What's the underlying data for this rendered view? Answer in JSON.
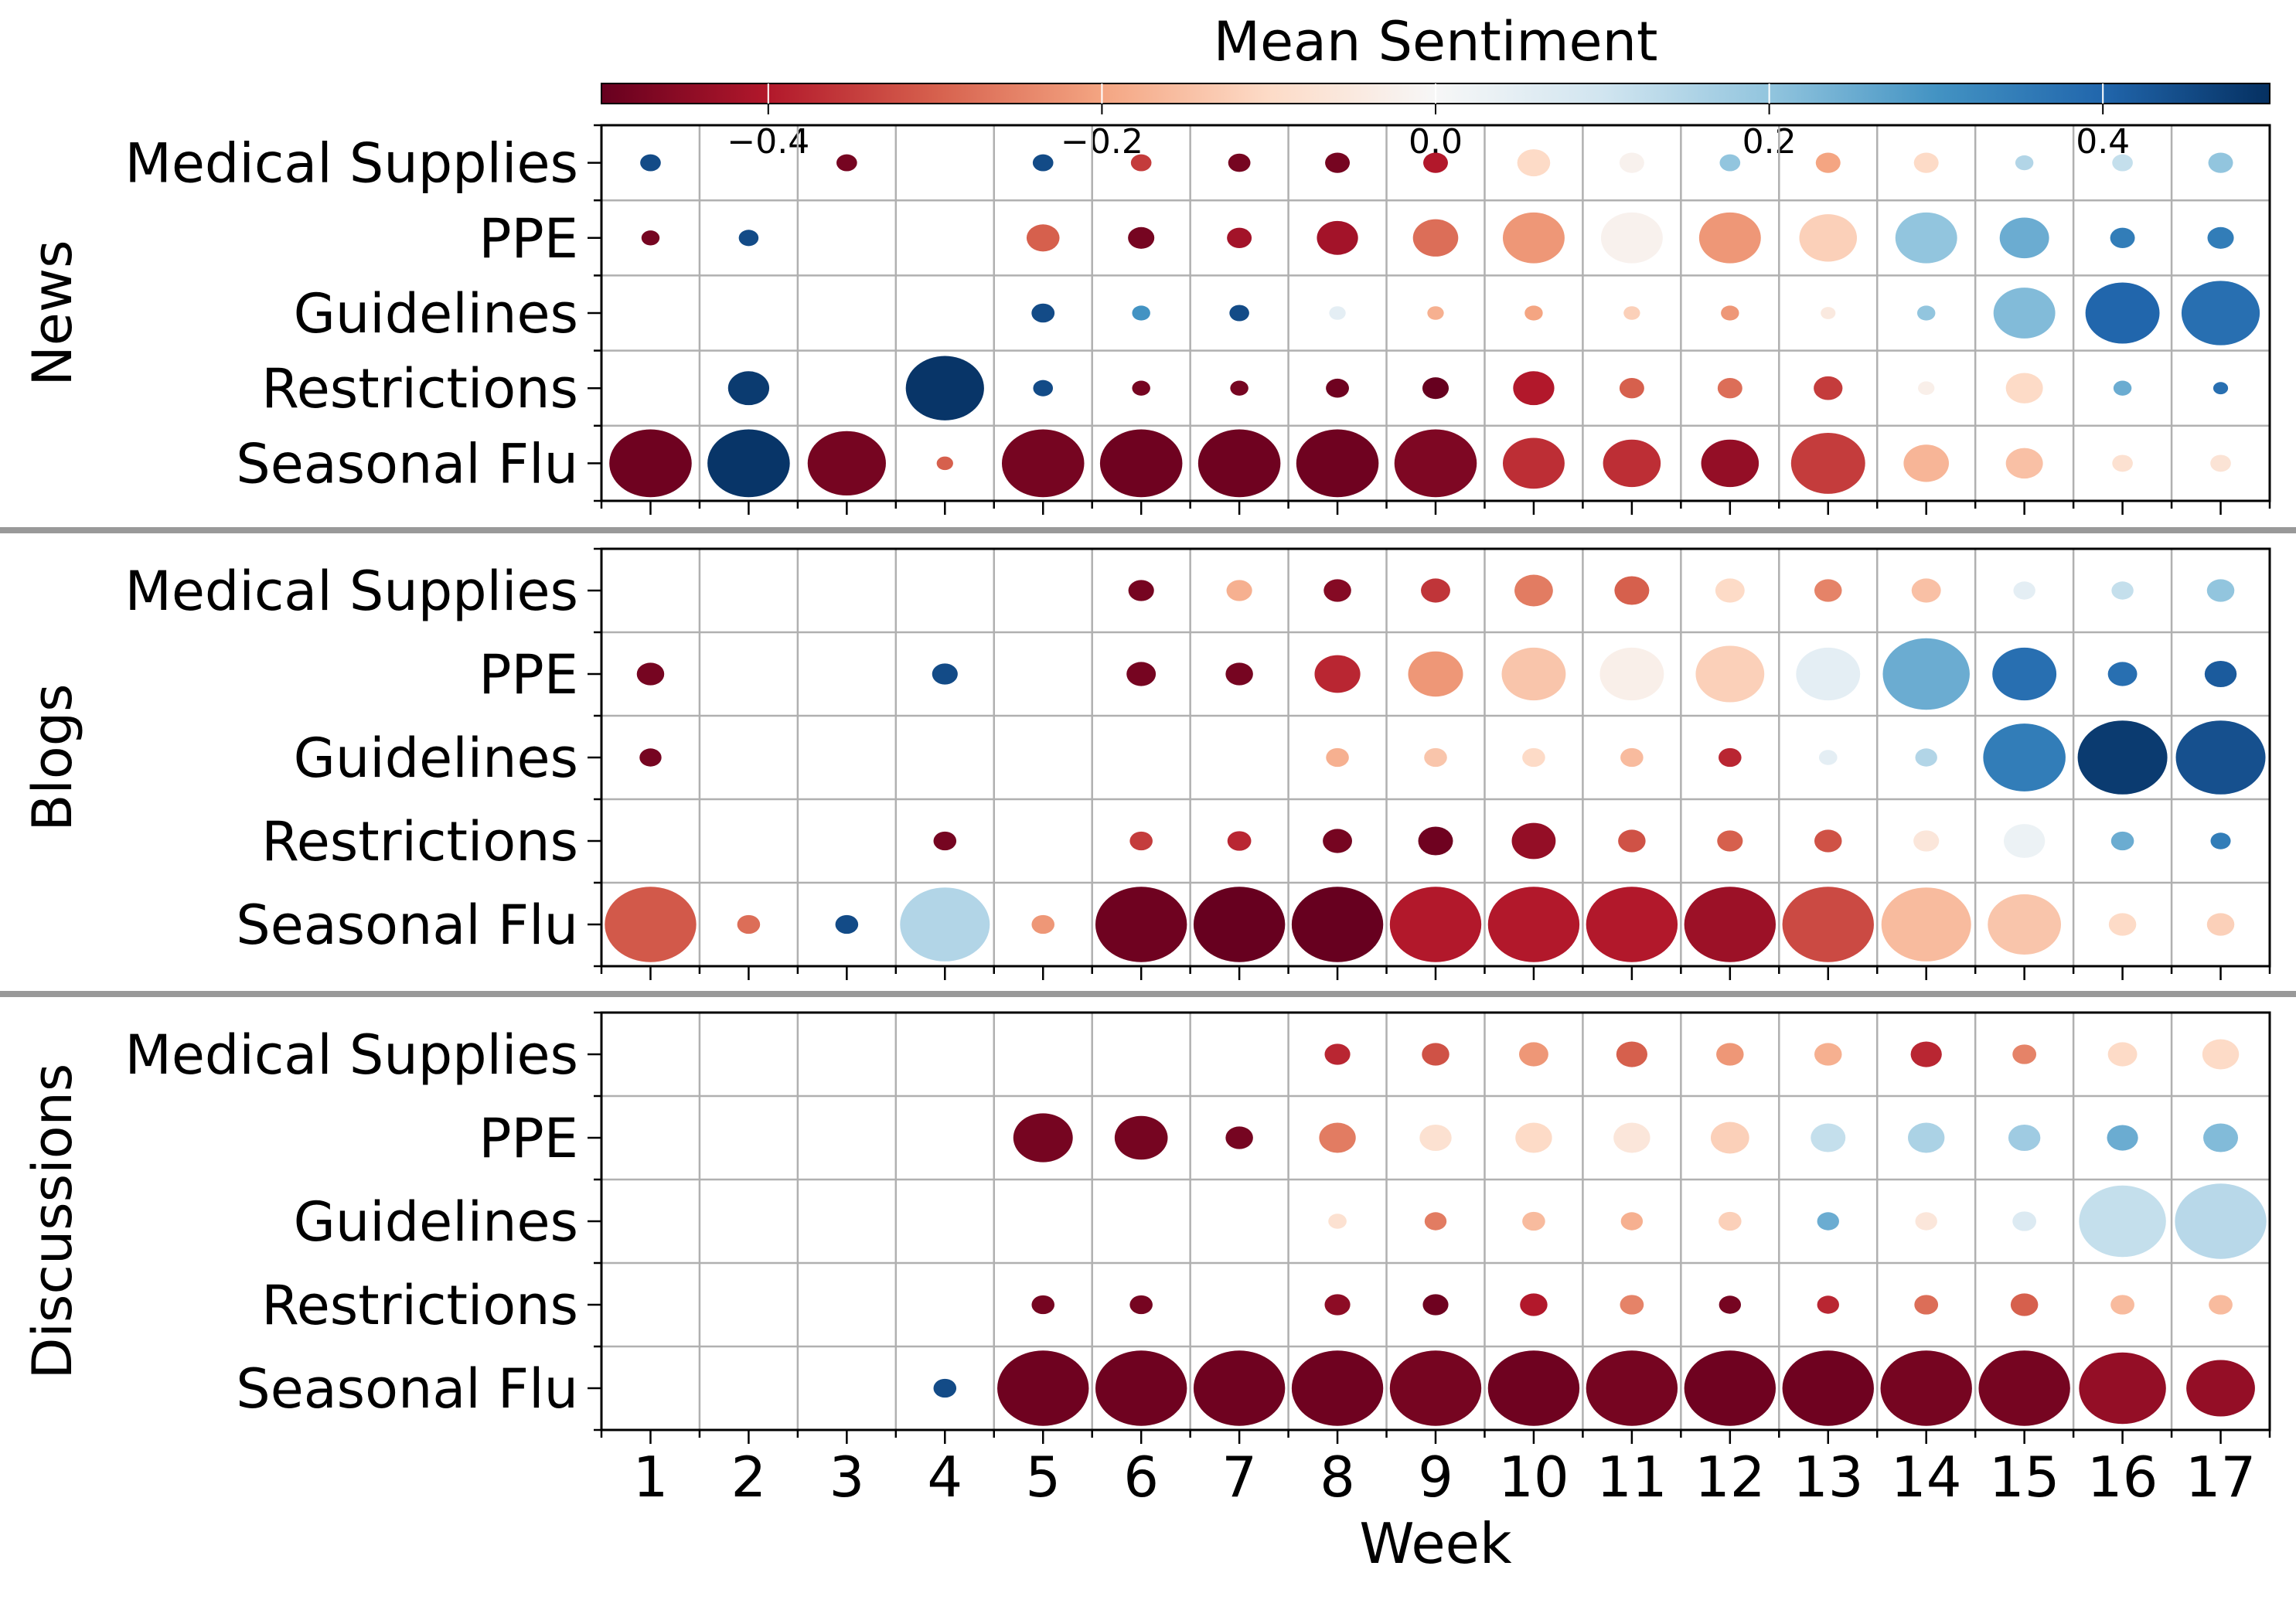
{
  "chart_data": {
    "type": "bubble-heatmap",
    "colorbar": {
      "title": "Mean Sentiment",
      "min": -0.5,
      "max": 0.5,
      "ticks": [
        -0.4,
        -0.2,
        0.0,
        0.2,
        0.4
      ],
      "tick_labels": [
        "−0.4",
        "−0.2",
        "0.0",
        "0.2",
        "0.4"
      ],
      "colormap": "RdBu"
    },
    "xlabel": "Week",
    "weeks": [
      1,
      2,
      3,
      4,
      5,
      6,
      7,
      8,
      9,
      10,
      11,
      12,
      13,
      14,
      15,
      16,
      17
    ],
    "categories": [
      "Medical Supplies",
      "PPE",
      "Guidelines",
      "Restrictions",
      "Seasonal Flu"
    ],
    "panels": [
      {
        "name": "News",
        "rows": [
          {
            "category": "Medical Supplies",
            "sentiment": [
              0.45,
              null,
              -0.48,
              null,
              0.45,
              -0.35,
              -0.48,
              -0.48,
              -0.4,
              -0.1,
              -0.02,
              0.2,
              -0.2,
              -0.1,
              0.15,
              0.12,
              0.2
            ],
            "size": [
              0.25,
              null,
              0.25,
              null,
              0.25,
              0.25,
              0.27,
              0.3,
              0.3,
              0.4,
              0.3,
              0.25,
              0.3,
              0.3,
              0.22,
              0.25,
              0.3
            ]
          },
          {
            "category": "PPE",
            "sentiment": [
              -0.48,
              0.45,
              null,
              null,
              -0.3,
              -0.48,
              -0.42,
              -0.42,
              -0.28,
              -0.22,
              -0.02,
              -0.22,
              -0.12,
              0.2,
              0.25,
              0.35,
              0.35
            ],
            "size": [
              0.22,
              0.24,
              null,
              null,
              0.4,
              0.32,
              0.3,
              0.5,
              0.55,
              0.75,
              0.75,
              0.75,
              0.7,
              0.75,
              0.6,
              0.3,
              0.32
            ]
          },
          {
            "category": "Guidelines",
            "sentiment": [
              null,
              null,
              null,
              null,
              0.45,
              0.3,
              0.45,
              0.05,
              -0.18,
              -0.2,
              -0.12,
              -0.22,
              -0.05,
              0.2,
              0.22,
              0.4,
              0.38
            ],
            "size": [
              null,
              null,
              null,
              null,
              0.28,
              0.22,
              0.24,
              0.2,
              0.2,
              0.22,
              0.2,
              0.22,
              0.18,
              0.22,
              0.75,
              0.9,
              0.95
            ]
          },
          {
            "category": "Restrictions",
            "sentiment": [
              null,
              0.48,
              null,
              0.49,
              0.45,
              -0.48,
              -0.48,
              -0.49,
              -0.5,
              -0.4,
              -0.3,
              -0.28,
              -0.35,
              -0.03,
              -0.1,
              0.25,
              0.38
            ],
            "size": [
              null,
              0.5,
              null,
              0.95,
              0.24,
              0.22,
              0.22,
              0.28,
              0.32,
              0.5,
              0.3,
              0.3,
              0.35,
              0.2,
              0.45,
              0.22,
              0.18
            ]
          },
          {
            "category": "Seasonal Flu",
            "sentiment": [
              -0.49,
              0.49,
              -0.48,
              -0.3,
              -0.48,
              -0.49,
              -0.49,
              -0.49,
              -0.47,
              -0.37,
              -0.37,
              -0.44,
              -0.35,
              -0.17,
              -0.15,
              -0.08,
              -0.07
            ],
            "size": [
              1.0,
              1.0,
              0.95,
              0.2,
              1.0,
              1.0,
              1.0,
              1.0,
              1.0,
              0.75,
              0.7,
              0.7,
              0.9,
              0.55,
              0.45,
              0.25,
              0.25
            ]
          }
        ]
      },
      {
        "name": "Blogs",
        "rows": [
          {
            "category": "Medical Supplies",
            "sentiment": [
              null,
              null,
              null,
              null,
              null,
              -0.48,
              -0.18,
              -0.46,
              -0.36,
              -0.26,
              -0.3,
              -0.1,
              -0.25,
              -0.15,
              0.05,
              0.12,
              0.2
            ],
            "size": [
              null,
              null,
              null,
              null,
              null,
              0.28,
              0.28,
              0.3,
              0.32,
              0.42,
              0.38,
              0.32,
              0.3,
              0.32,
              0.24,
              0.24,
              0.3
            ]
          },
          {
            "category": "PPE",
            "sentiment": [
              -0.48,
              null,
              null,
              0.45,
              null,
              -0.48,
              -0.48,
              -0.38,
              -0.22,
              -0.14,
              -0.03,
              -0.12,
              0.05,
              0.25,
              0.38,
              0.38,
              0.42
            ],
            "size": [
              0.3,
              null,
              null,
              0.28,
              null,
              0.32,
              0.3,
              0.5,
              0.6,
              0.7,
              0.7,
              0.75,
              0.7,
              0.95,
              0.7,
              0.32,
              0.35
            ]
          },
          {
            "category": "Guidelines",
            "sentiment": [
              -0.48,
              null,
              null,
              null,
              null,
              null,
              null,
              -0.18,
              -0.14,
              -0.1,
              -0.16,
              -0.38,
              0.05,
              0.15,
              0.35,
              0.48,
              0.44
            ],
            "size": [
              0.24,
              null,
              null,
              null,
              null,
              null,
              null,
              0.25,
              0.25,
              0.25,
              0.25,
              0.25,
              0.2,
              0.24,
              0.9,
              0.98,
              0.98
            ]
          },
          {
            "category": "Restrictions",
            "sentiment": [
              null,
              null,
              null,
              -0.48,
              null,
              -0.35,
              -0.38,
              -0.48,
              -0.49,
              -0.44,
              -0.32,
              -0.3,
              -0.32,
              -0.06,
              0.03,
              0.25,
              0.35
            ],
            "size": [
              null,
              null,
              null,
              0.25,
              null,
              0.25,
              0.26,
              0.32,
              0.38,
              0.48,
              0.3,
              0.28,
              0.3,
              0.28,
              0.45,
              0.25,
              0.22
            ]
          },
          {
            "category": "Seasonal Flu",
            "sentiment": [
              -0.31,
              -0.28,
              0.45,
              0.15,
              -0.22,
              -0.49,
              -0.5,
              -0.5,
              -0.4,
              -0.4,
              -0.4,
              -0.43,
              -0.33,
              -0.16,
              -0.14,
              -0.1,
              -0.12
            ],
            "size": [
              1.0,
              0.25,
              0.25,
              0.98,
              0.25,
              1.0,
              1.0,
              1.0,
              1.0,
              1.0,
              1.0,
              1.0,
              1.0,
              0.98,
              0.8,
              0.3,
              0.3
            ]
          }
        ]
      },
      {
        "name": "Discussions",
        "rows": [
          {
            "category": "Medical Supplies",
            "sentiment": [
              null,
              null,
              null,
              null,
              null,
              null,
              null,
              -0.38,
              -0.32,
              -0.22,
              -0.3,
              -0.22,
              -0.18,
              -0.38,
              -0.25,
              -0.1,
              -0.1
            ],
            "size": [
              null,
              null,
              null,
              null,
              null,
              null,
              null,
              0.28,
              0.3,
              0.32,
              0.34,
              0.3,
              0.3,
              0.34,
              0.26,
              0.32,
              0.4
            ]
          },
          {
            "category": "PPE",
            "sentiment": [
              null,
              null,
              null,
              null,
              -0.48,
              -0.48,
              -0.48,
              -0.26,
              -0.08,
              -0.1,
              -0.06,
              -0.12,
              0.12,
              0.16,
              0.18,
              0.25,
              0.22
            ],
            "size": [
              null,
              null,
              null,
              null,
              0.65,
              0.58,
              0.3,
              0.4,
              0.35,
              0.4,
              0.4,
              0.42,
              0.38,
              0.4,
              0.35,
              0.34,
              0.38
            ]
          },
          {
            "category": "Guidelines",
            "sentiment": [
              null,
              null,
              null,
              null,
              null,
              null,
              null,
              -0.08,
              -0.26,
              -0.16,
              -0.18,
              -0.12,
              0.25,
              -0.06,
              0.07,
              0.12,
              0.14
            ],
            "size": [
              null,
              null,
              null,
              null,
              null,
              null,
              null,
              0.2,
              0.24,
              0.25,
              0.24,
              0.25,
              0.24,
              0.24,
              0.26,
              0.95,
              1.0
            ]
          },
          {
            "category": "Restrictions",
            "sentiment": [
              null,
              null,
              null,
              null,
              -0.48,
              -0.48,
              null,
              -0.45,
              -0.49,
              -0.4,
              -0.25,
              -0.48,
              -0.38,
              -0.28,
              -0.3,
              -0.16,
              -0.16
            ],
            "size": [
              null,
              null,
              null,
              null,
              0.25,
              0.25,
              null,
              0.28,
              0.28,
              0.3,
              0.26,
              0.24,
              0.24,
              0.26,
              0.3,
              0.26,
              0.26
            ]
          },
          {
            "category": "Seasonal Flu",
            "sentiment": [
              null,
              null,
              null,
              0.45,
              -0.49,
              -0.49,
              -0.49,
              -0.49,
              -0.48,
              -0.49,
              -0.48,
              -0.49,
              -0.49,
              -0.48,
              -0.48,
              -0.44,
              -0.44
            ],
            "size": [
              null,
              null,
              null,
              0.25,
              1.0,
              1.0,
              1.0,
              1.0,
              1.0,
              1.0,
              1.0,
              1.0,
              1.0,
              1.0,
              1.0,
              0.95,
              0.75
            ]
          }
        ]
      }
    ]
  }
}
